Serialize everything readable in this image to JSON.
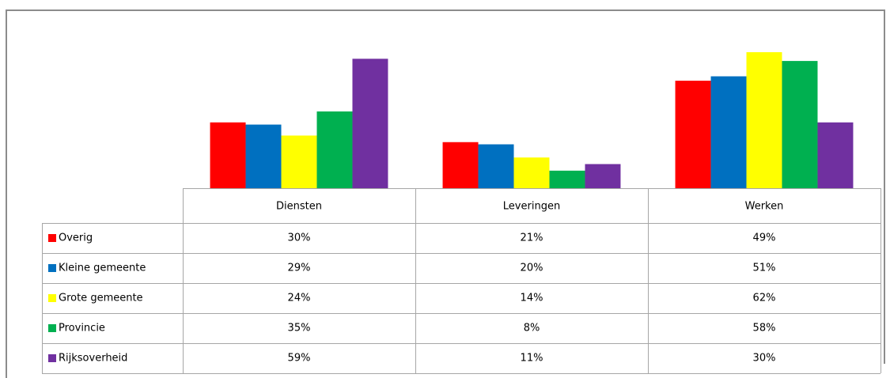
{
  "chart_data": {
    "type": "bar",
    "categories": [
      "Diensten",
      "Leveringen",
      "Werken"
    ],
    "series": [
      {
        "name": "Overig",
        "color": "#ff0000",
        "values": [
          30,
          21,
          49
        ],
        "value_labels": [
          "30%",
          "21%",
          "49%"
        ]
      },
      {
        "name": "Kleine gemeente",
        "color": "#0070c0",
        "values": [
          29,
          20,
          51
        ],
        "value_labels": [
          "29%",
          "20%",
          "51%"
        ]
      },
      {
        "name": "Grote gemeente",
        "color": "#ffff00",
        "values": [
          24,
          14,
          62
        ],
        "value_labels": [
          "24%",
          "14%",
          "62%"
        ]
      },
      {
        "name": "Provincie",
        "color": "#00b050",
        "values": [
          35,
          8,
          58
        ],
        "value_labels": [
          "35%",
          "8%",
          "58%"
        ]
      },
      {
        "name": "Rijksoverheid",
        "color": "#7030a0",
        "values": [
          59,
          11,
          30
        ],
        "value_labels": [
          "59%",
          "11%",
          "30%"
        ]
      }
    ]
  }
}
